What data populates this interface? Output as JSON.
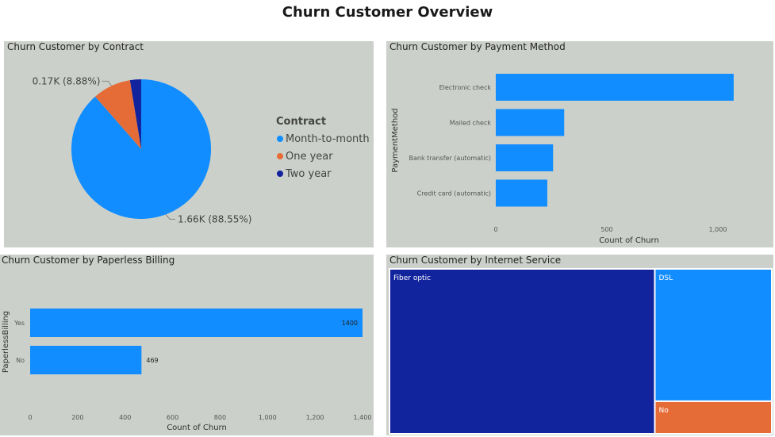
{
  "dashboard_title": "Churn Customer Overview",
  "chart_data": [
    {
      "type": "pie",
      "title": "Churn Customer by Contract",
      "legend_title": "Contract",
      "categories": [
        "Month-to-month",
        "One year",
        "Two year"
      ],
      "values": [
        1655,
        166,
        48
      ],
      "percent_labels": [
        "88.55%",
        "8.88%",
        ""
      ],
      "data_labels": [
        "1.66K (88.55%)",
        "0.17K (8.88%)",
        ""
      ],
      "colors": [
        "#118dff",
        "#e66c37",
        "#12239e"
      ],
      "legend_position": "right"
    },
    {
      "type": "bar",
      "orientation": "horizontal",
      "title": "Churn Customer by Payment Method",
      "categories": [
        "Electronic check",
        "Mailed check",
        "Bank transfer (automatic)",
        "Credit card (automatic)"
      ],
      "values": [
        1071,
        308,
        258,
        232
      ],
      "xlabel": "Count of Churn",
      "ylabel": "PaymentMethod",
      "xlim": [
        0,
        1150
      ],
      "xticks": [
        0,
        500,
        1000
      ],
      "xtick_labels": [
        "0",
        "500",
        "1,000"
      ],
      "color": "#118dff"
    },
    {
      "type": "bar",
      "orientation": "horizontal",
      "title": "Churn Customer by Paperless Billing",
      "categories": [
        "Yes",
        "No"
      ],
      "values": [
        1400,
        469
      ],
      "data_labels": [
        "1400",
        "469"
      ],
      "xlabel": "Count of Churn",
      "ylabel": "PaperlessBilling",
      "xlim": [
        0,
        1400
      ],
      "xticks": [
        0,
        200,
        400,
        600,
        800,
        1000,
        1200,
        1400
      ],
      "xtick_labels": [
        "0",
        "200",
        "400",
        "600",
        "800",
        "1,000",
        "1,200",
        "1,400"
      ],
      "color": "#118dff"
    },
    {
      "type": "treemap",
      "title": "Churn Customer by Internet Service",
      "categories": [
        "Fiber optic",
        "DSL",
        "No"
      ],
      "values": [
        1297,
        459,
        113
      ],
      "colors": [
        "#12239e",
        "#118dff",
        "#e66c37"
      ]
    }
  ]
}
